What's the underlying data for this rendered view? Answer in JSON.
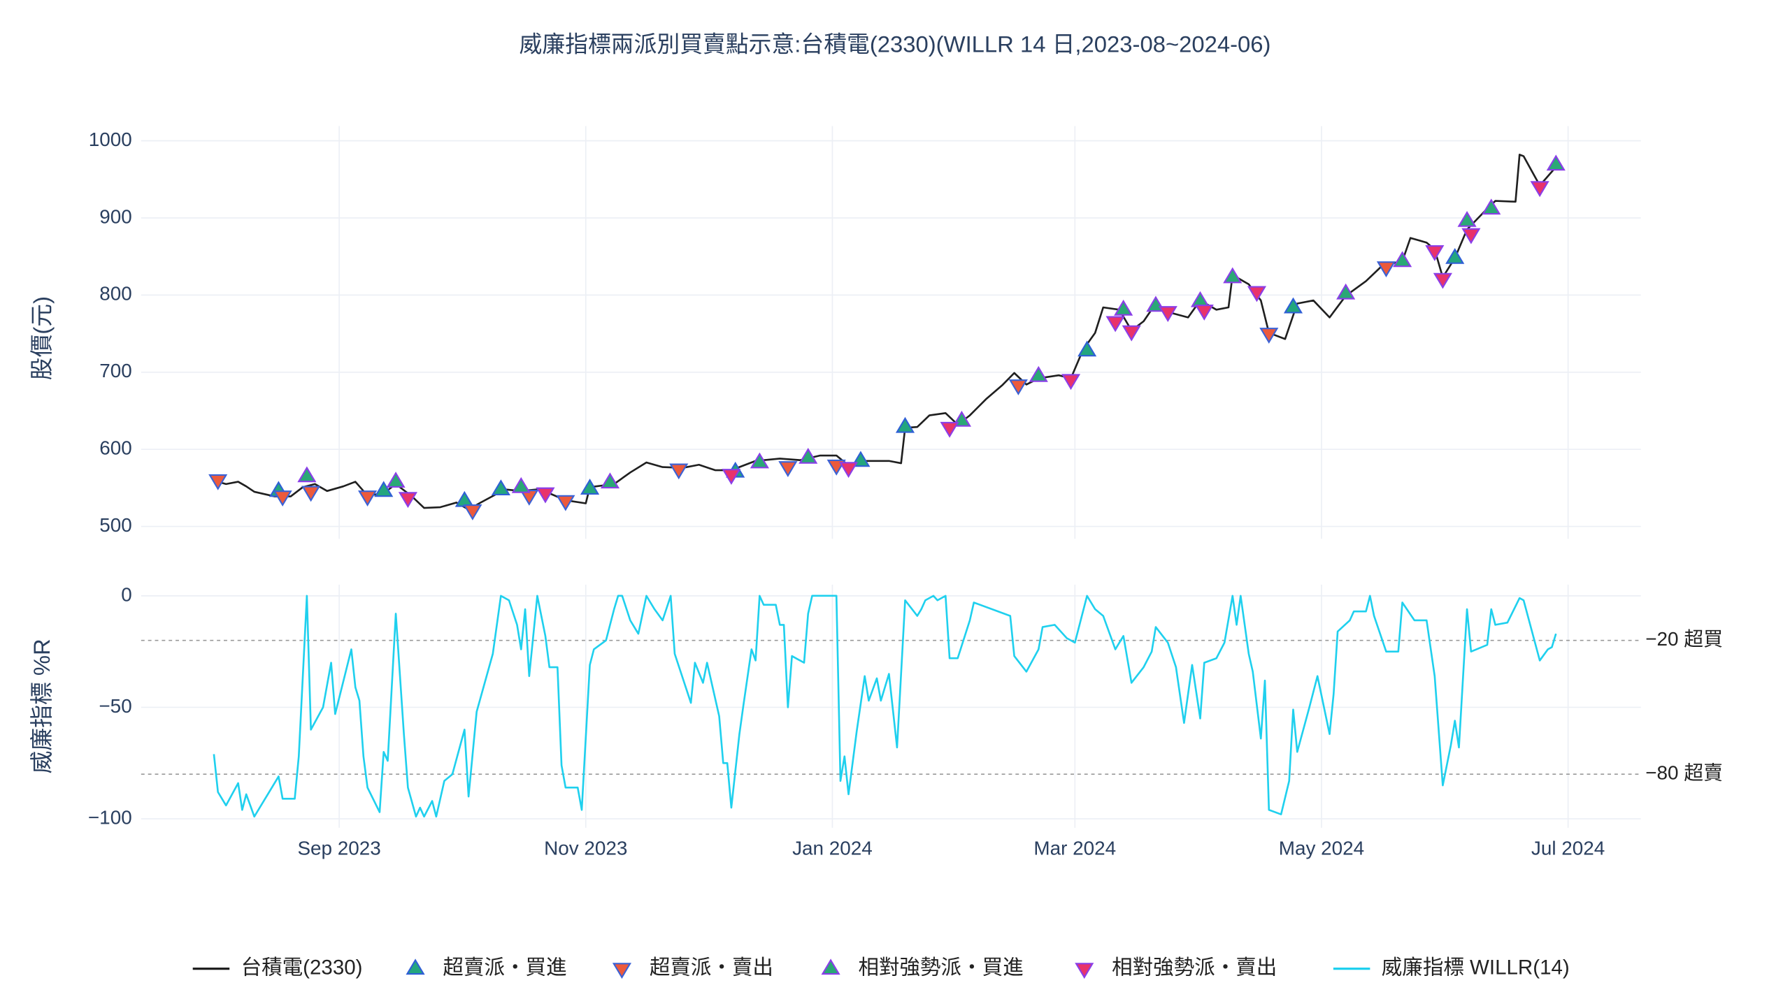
{
  "chart_data": [
    {
      "type": "line",
      "title": "威廉指標兩派別買賣點示意:台積電(2330)(WILLR 14 日,2023-08~2024-06)",
      "y_label": "股價(元)",
      "xlim": [
        "2023-07-14",
        "2024-07-19"
      ],
      "ylim": [
        484,
        1019
      ],
      "yticks": [
        500,
        600,
        700,
        800,
        900,
        1000
      ],
      "grid": true,
      "series": [
        {
          "name": "台積電(2330)",
          "color": "#1f1f1f",
          "marker": "none",
          "x": [
            "2023-08-02",
            "2023-08-04",
            "2023-08-07",
            "2023-08-09",
            "2023-08-11",
            "2023-08-16",
            "2023-08-20",
            "2023-08-23",
            "2023-08-26",
            "2023-08-29",
            "2023-09-02",
            "2023-09-05",
            "2023-09-08",
            "2023-09-12",
            "2023-09-15",
            "2023-09-19",
            "2023-09-22",
            "2023-09-26",
            "2023-09-30",
            "2023-10-03",
            "2023-10-06",
            "2023-10-12",
            "2023-10-16",
            "2023-10-20",
            "2023-10-23",
            "2023-10-27",
            "2023-11-01",
            "2023-11-02",
            "2023-11-08",
            "2023-11-12",
            "2023-11-16",
            "2023-11-20",
            "2023-11-25",
            "2023-11-29",
            "2023-12-03",
            "2023-12-07",
            "2023-12-13",
            "2023-12-19",
            "2023-12-24",
            "2023-12-29",
            "2024-01-02",
            "2024-01-05",
            "2024-01-09",
            "2024-01-15",
            "2024-01-18",
            "2024-01-19",
            "2024-01-22",
            "2024-01-25",
            "2024-01-29",
            "2024-02-01",
            "2024-02-04",
            "2024-02-08",
            "2024-02-12",
            "2024-02-15",
            "2024-02-18",
            "2024-02-21",
            "2024-02-26",
            "2024-02-29",
            "2024-03-03",
            "2024-03-06",
            "2024-03-08",
            "2024-03-12",
            "2024-03-15",
            "2024-03-18",
            "2024-03-21",
            "2024-03-24",
            "2024-03-29",
            "2024-04-01",
            "2024-04-05",
            "2024-04-08",
            "2024-04-09",
            "2024-04-13",
            "2024-04-16",
            "2024-04-18",
            "2024-04-22",
            "2024-04-25",
            "2024-04-29",
            "2024-05-03",
            "2024-05-07",
            "2024-05-12",
            "2024-05-16",
            "2024-05-21",
            "2024-05-23",
            "2024-05-27",
            "2024-05-29",
            "2024-05-31",
            "2024-06-03",
            "2024-06-06",
            "2024-06-11",
            "2024-06-13",
            "2024-06-18",
            "2024-06-19",
            "2024-06-20",
            "2024-06-24",
            "2024-06-27",
            "2024-06-28"
          ],
          "values": [
            558,
            555,
            558,
            552,
            545,
            539,
            539,
            551,
            555,
            546,
            552,
            558,
            540,
            543,
            555,
            539,
            524,
            525,
            531,
            522,
            531,
            548,
            546,
            548,
            543,
            534,
            530,
            551,
            555,
            570,
            583,
            577,
            576,
            580,
            573,
            573,
            585,
            588,
            586,
            592,
            592,
            579,
            585,
            585,
            582,
            628,
            629,
            644,
            647,
            632,
            644,
            665,
            683,
            699,
            684,
            692,
            696,
            692,
            729,
            751,
            784,
            781,
            754,
            766,
            789,
            778,
            771,
            793,
            781,
            784,
            826,
            814,
            793,
            751,
            743,
            789,
            793,
            771,
            799,
            818,
            838,
            844,
            874,
            868,
            859,
            823,
            848,
            885,
            912,
            922,
            921,
            982,
            980,
            942,
            960,
            966
          ]
        },
        {
          "name": "超賣派・買進",
          "color": "#23a67e",
          "edgecolor": "#2f5fd6",
          "marker": "triangle-up",
          "x": [
            "2023-08-17",
            "2023-09-12",
            "2023-10-02",
            "2023-10-11",
            "2023-11-02",
            "2023-12-08",
            "2024-01-08",
            "2024-01-19",
            "2024-03-04",
            "2024-04-24",
            "2024-06-03"
          ],
          "values": [
            546,
            546,
            533,
            548,
            549,
            571,
            585,
            629,
            728,
            784,
            848
          ]
        },
        {
          "name": "超賣派・賣出",
          "color": "#ec5a3c",
          "edgecolor": "#3b62d6",
          "marker": "triangle-down",
          "x": [
            "2023-08-02",
            "2023-08-18",
            "2023-08-25",
            "2023-09-08",
            "2023-10-04",
            "2023-10-18",
            "2023-10-27",
            "2023-11-24",
            "2023-12-21",
            "2024-01-02",
            "2024-02-16",
            "2024-04-18",
            "2024-05-17"
          ],
          "values": [
            560,
            539,
            545,
            539,
            521,
            540,
            533,
            574,
            577,
            579,
            683,
            750,
            836
          ]
        },
        {
          "name": "相對強勢派・買進",
          "color": "#2aa876",
          "edgecolor": "#8a3ee8",
          "marker": "triangle-up",
          "x": [
            "2023-08-24",
            "2023-09-15",
            "2023-10-16",
            "2023-11-07",
            "2023-12-14",
            "2023-12-26",
            "2024-02-02",
            "2024-02-21",
            "2024-03-13",
            "2024-03-21",
            "2024-04-01",
            "2024-04-09",
            "2024-05-07",
            "2024-05-21",
            "2024-06-06",
            "2024-06-12",
            "2024-06-28"
          ],
          "values": [
            565,
            558,
            551,
            557,
            583,
            589,
            637,
            695,
            781,
            786,
            792,
            823,
            802,
            844,
            896,
            912,
            969
          ]
        },
        {
          "name": "相對強勢派・賣出",
          "color": "#e8336b",
          "edgecolor": "#8a3ee8",
          "marker": "triangle-down",
          "x": [
            "2023-09-18",
            "2023-10-22",
            "2023-12-07",
            "2024-01-05",
            "2024-01-30",
            "2024-02-29",
            "2024-03-11",
            "2024-03-15",
            "2024-03-24",
            "2024-04-02",
            "2024-04-15",
            "2024-05-29",
            "2024-05-31",
            "2024-06-07",
            "2024-06-24"
          ],
          "values": [
            537,
            543,
            567,
            576,
            628,
            690,
            765,
            753,
            778,
            780,
            804,
            857,
            821,
            879,
            940
          ]
        }
      ]
    },
    {
      "type": "line",
      "y_label": "威廉指標 %R",
      "xlim": [
        "2023-07-14",
        "2024-07-19"
      ],
      "xticks": [
        {
          "value": "2023-09-01",
          "label": "Sep 2023"
        },
        {
          "value": "2023-11-01",
          "label": "Nov 2023"
        },
        {
          "value": "2024-01-01",
          "label": "Jan 2024"
        },
        {
          "value": "2024-03-01",
          "label": "Mar 2024"
        },
        {
          "value": "2024-05-01",
          "label": "May 2024"
        },
        {
          "value": "2024-07-01",
          "label": "Jul 2024"
        }
      ],
      "ylim": [
        -104,
        5
      ],
      "yticks": [
        0,
        {
          "value": -50,
          "label": "−50"
        },
        {
          "value": -100,
          "label": "−100"
        }
      ],
      "grid": true,
      "hlines": [
        {
          "value": -20,
          "label": "−20 超買"
        },
        {
          "value": -80,
          "label": "−80 超賣"
        }
      ],
      "series": [
        {
          "name": "威廉指標 WILLR(14)",
          "color": "#1fd0ee",
          "x": [
            "2023-08-01",
            "2023-08-02",
            "2023-08-04",
            "2023-08-07",
            "2023-08-08",
            "2023-08-09",
            "2023-08-11",
            "2023-08-14",
            "2023-08-17",
            "2023-08-18",
            "2023-08-21",
            "2023-08-22",
            "2023-08-24",
            "2023-08-25",
            "2023-08-28",
            "2023-08-30",
            "2023-08-31",
            "2023-09-04",
            "2023-09-05",
            "2023-09-06",
            "2023-09-07",
            "2023-09-08",
            "2023-09-11",
            "2023-09-12",
            "2023-09-13",
            "2023-09-15",
            "2023-09-17",
            "2023-09-18",
            "2023-09-20",
            "2023-09-21",
            "2023-09-22",
            "2023-09-24",
            "2023-09-25",
            "2023-09-27",
            "2023-09-29",
            "2023-10-02",
            "2023-10-03",
            "2023-10-05",
            "2023-10-09",
            "2023-10-11",
            "2023-10-13",
            "2023-10-15",
            "2023-10-16",
            "2023-10-17",
            "2023-10-18",
            "2023-10-20",
            "2023-10-22",
            "2023-10-23",
            "2023-10-25",
            "2023-10-26",
            "2023-10-27",
            "2023-10-30",
            "2023-10-31",
            "2023-11-02",
            "2023-11-03",
            "2023-11-06",
            "2023-11-08",
            "2023-11-09",
            "2023-11-10",
            "2023-11-12",
            "2023-11-14",
            "2023-11-16",
            "2023-11-18",
            "2023-11-20",
            "2023-11-22",
            "2023-11-23",
            "2023-11-27",
            "2023-11-28",
            "2023-11-30",
            "2023-12-01",
            "2023-12-04",
            "2023-12-05",
            "2023-12-06",
            "2023-12-07",
            "2023-12-09",
            "2023-12-10",
            "2023-12-12",
            "2023-12-13",
            "2023-12-14",
            "2023-12-15",
            "2023-12-18",
            "2023-12-19",
            "2023-12-20",
            "2023-12-21",
            "2023-12-22",
            "2023-12-25",
            "2023-12-26",
            "2023-12-27",
            "2024-01-02",
            "2024-01-03",
            "2024-01-04",
            "2024-01-05",
            "2024-01-07",
            "2024-01-09",
            "2024-01-10",
            "2024-01-12",
            "2024-01-13",
            "2024-01-15",
            "2024-01-17",
            "2024-01-19",
            "2024-01-22",
            "2024-01-23",
            "2024-01-24",
            "2024-01-26",
            "2024-01-27",
            "2024-01-29",
            "2024-01-30",
            "2024-02-01",
            "2024-02-04",
            "2024-02-05",
            "2024-02-14",
            "2024-02-15",
            "2024-02-18",
            "2024-02-21",
            "2024-02-22",
            "2024-02-25",
            "2024-02-28",
            "2024-03-01",
            "2024-03-04",
            "2024-03-06",
            "2024-03-08",
            "2024-03-11",
            "2024-03-13",
            "2024-03-15",
            "2024-03-18",
            "2024-03-20",
            "2024-03-21",
            "2024-03-24",
            "2024-03-26",
            "2024-03-28",
            "2024-03-30",
            "2024-04-01",
            "2024-04-02",
            "2024-04-05",
            "2024-04-07",
            "2024-04-09",
            "2024-04-10",
            "2024-04-11",
            "2024-04-13",
            "2024-04-14",
            "2024-04-16",
            "2024-04-17",
            "2024-04-18",
            "2024-04-21",
            "2024-04-23",
            "2024-04-24",
            "2024-04-25",
            "2024-04-28",
            "2024-04-30",
            "2024-05-03",
            "2024-05-04",
            "2024-05-05",
            "2024-05-08",
            "2024-05-09",
            "2024-05-12",
            "2024-05-13",
            "2024-05-14",
            "2024-05-17",
            "2024-05-20",
            "2024-05-21",
            "2024-05-24",
            "2024-05-27",
            "2024-05-29",
            "2024-05-31",
            "2024-06-02",
            "2024-06-03",
            "2024-06-04",
            "2024-06-06",
            "2024-06-07",
            "2024-06-11",
            "2024-06-12",
            "2024-06-13",
            "2024-06-16",
            "2024-06-19",
            "2024-06-20",
            "2024-06-24",
            "2024-06-26",
            "2024-06-27",
            "2024-06-28"
          ],
          "values": [
            -71,
            -88,
            -94,
            -84,
            -96,
            -89,
            -99,
            -90,
            -81,
            -91,
            -91,
            -72,
            0,
            -60,
            -50,
            -30,
            -53,
            -24,
            -41,
            -47,
            -72,
            -86,
            -97,
            -70,
            -74,
            -8,
            -62,
            -86,
            -99,
            -95,
            -99,
            -92,
            -99,
            -83,
            -80,
            -60,
            -90,
            -52,
            -26,
            0,
            -2,
            -13,
            -24,
            -6,
            -36,
            0,
            -18,
            -32,
            -32,
            -76,
            -86,
            -86,
            -96,
            -31,
            -24,
            -20,
            -6,
            0,
            0,
            -11,
            -17,
            0,
            -6,
            -11,
            0,
            -26,
            -48,
            -30,
            -39,
            -30,
            -54,
            -75,
            -75,
            -95,
            -62,
            -49,
            -24,
            -29,
            0,
            -4,
            -4,
            -13,
            -13,
            -50,
            -27,
            -30,
            -8,
            0,
            0,
            -83,
            -72,
            -89,
            -61,
            -36,
            -47,
            -37,
            -47,
            -35,
            -68,
            -2,
            -9,
            -6,
            -2,
            0,
            -2,
            0,
            -28,
            -28,
            -11,
            -3,
            -9,
            -27,
            -34,
            -24,
            -14,
            -13,
            -19,
            -21,
            0,
            -6,
            -9,
            -24,
            -18,
            -39,
            -32,
            -25,
            -14,
            -21,
            -32,
            -57,
            -31,
            -55,
            -30,
            -28,
            -21,
            0,
            -13,
            0,
            -26,
            -34,
            -64,
            -38,
            -96,
            -98,
            -83,
            -51,
            -70,
            -50,
            -36,
            -62,
            -44,
            -16,
            -11,
            -7,
            -7,
            0,
            -9,
            -25,
            -25,
            -3,
            -11,
            -11,
            -36,
            -85,
            -67,
            -56,
            -68,
            -6,
            -25,
            -22,
            -6,
            -13,
            -12,
            -1,
            -2,
            -29,
            -24,
            -23,
            -17
          ]
        }
      ]
    }
  ]
}
